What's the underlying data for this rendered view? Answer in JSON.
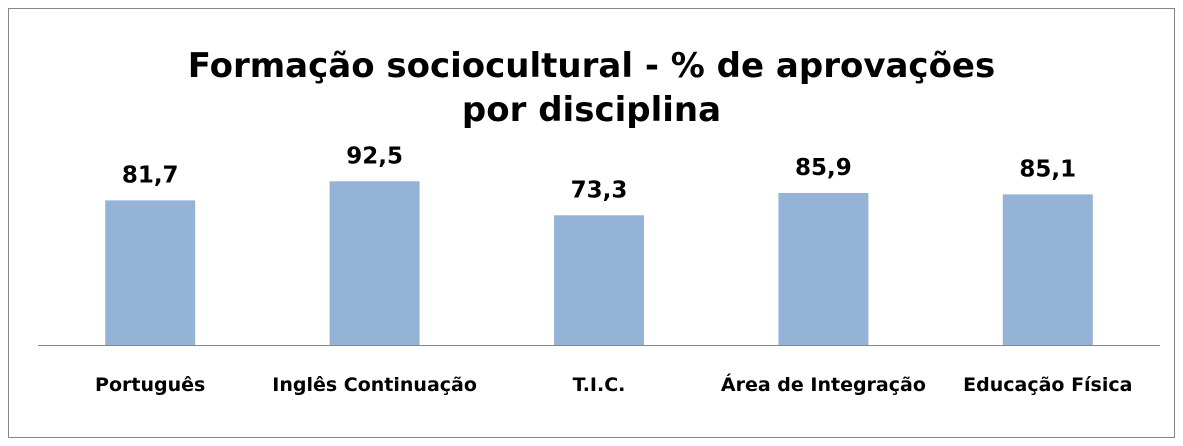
{
  "chart_data": {
    "type": "bar",
    "title": "Formação sociocultural - % de aprovações por disciplina",
    "categories": [
      "Português",
      "Inglês Continuação",
      "T.I.C.",
      "Área de Integração",
      "Educação Física"
    ],
    "values": [
      81.7,
      92.5,
      73.3,
      85.9,
      85.1
    ],
    "value_labels": [
      "81,7",
      "92,5",
      "73,3",
      "85,9",
      "85,1"
    ],
    "color": "#95b3d7",
    "ylim": [
      0,
      100
    ]
  }
}
